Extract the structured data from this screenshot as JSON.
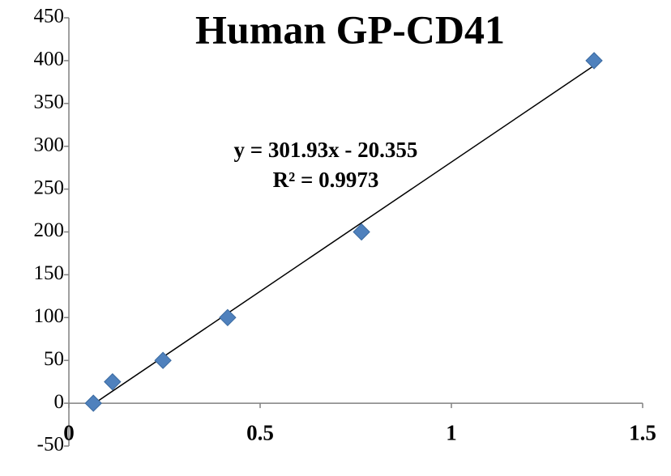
{
  "chart_data": {
    "type": "scatter",
    "title": "Human GP-CD41",
    "x": [
      0.064,
      0.114,
      0.246,
      0.415,
      0.765,
      1.373
    ],
    "values": [
      0,
      25,
      50,
      100,
      200,
      400
    ],
    "color": "#4f81bd",
    "xlim": [
      0,
      1.5
    ],
    "xticks": [
      0,
      0.5,
      1,
      1.5
    ],
    "ylim": [
      -50,
      450
    ],
    "yticks": [
      -50,
      0,
      50,
      100,
      150,
      200,
      250,
      300,
      350,
      400,
      450
    ],
    "trendline": {
      "slope": 301.93,
      "intercept": -20.355,
      "equation": "y = 301.93x - 20.355",
      "r_squared": "R² = 0.9973"
    }
  }
}
